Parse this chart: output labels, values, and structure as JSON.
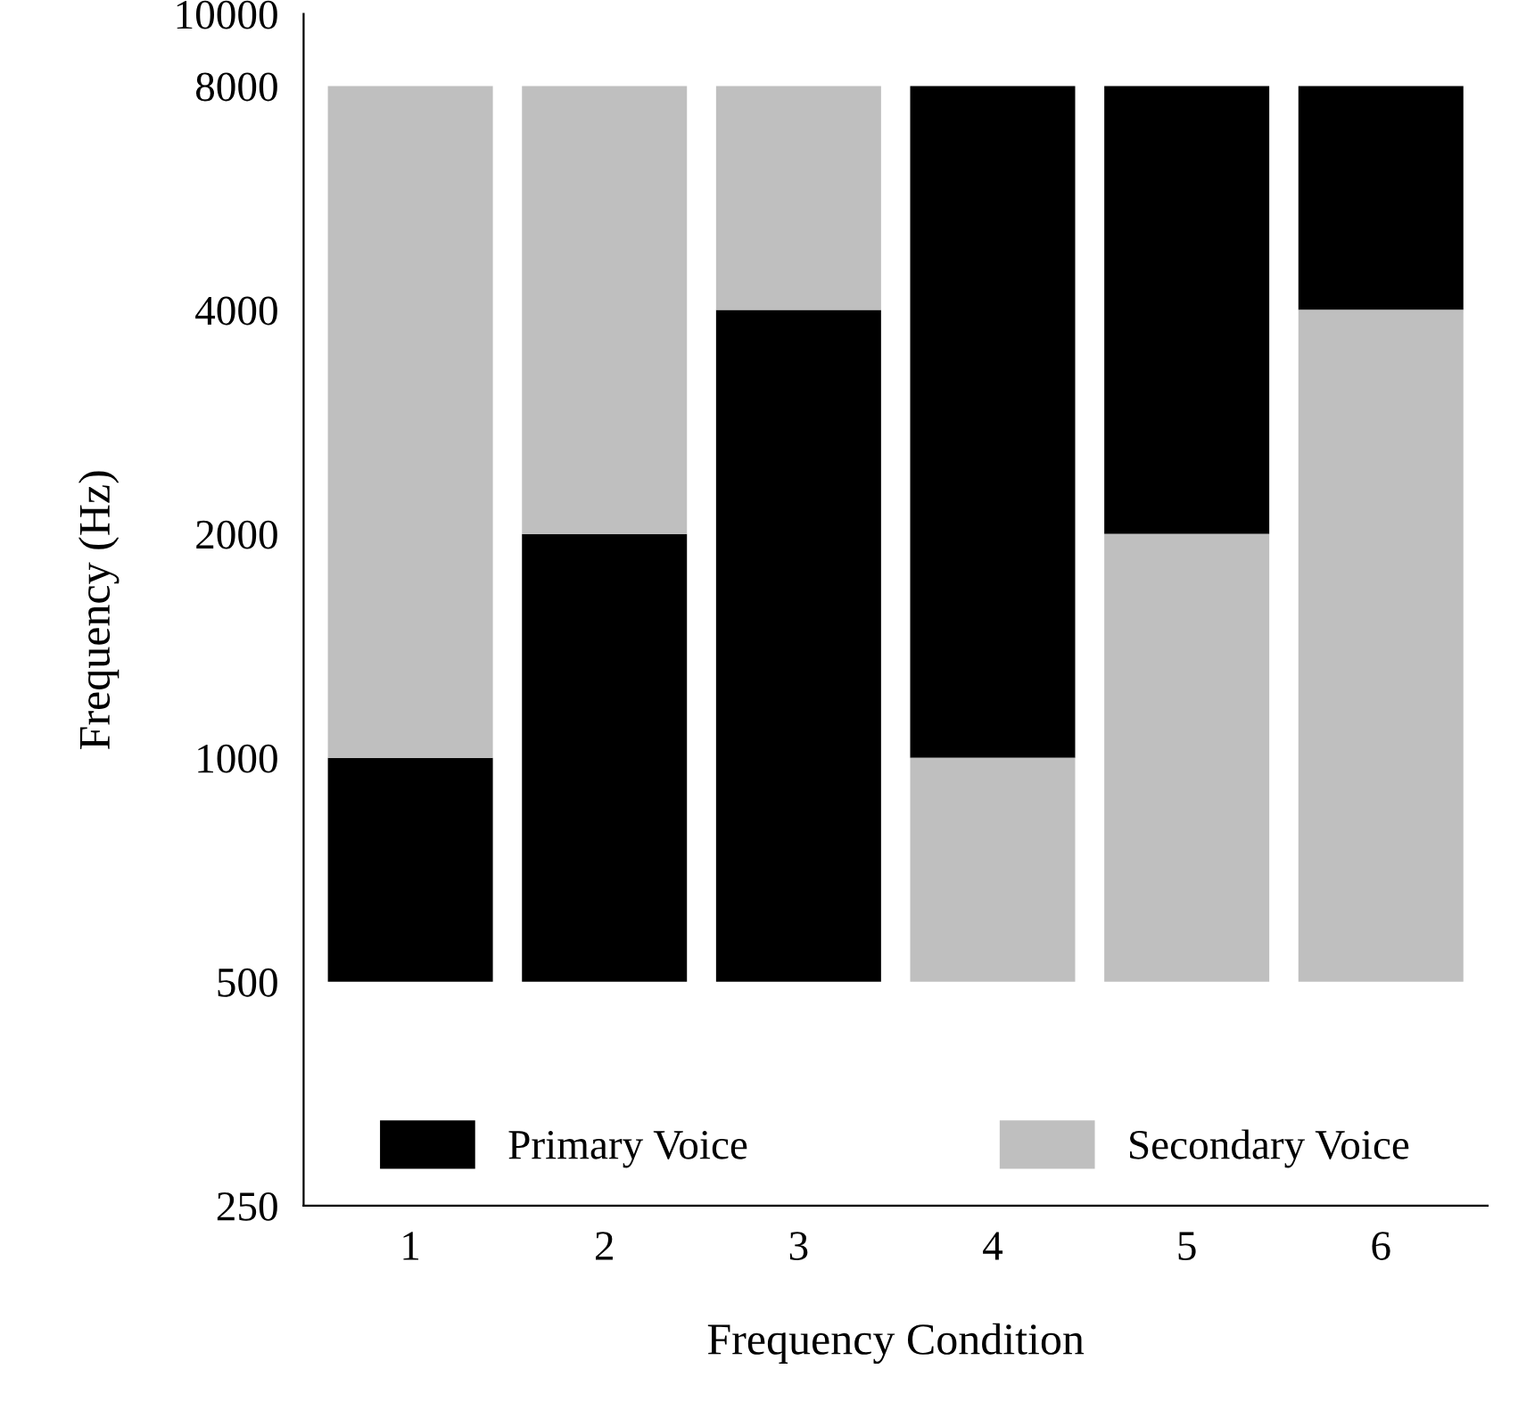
{
  "chart_data": {
    "type": "bar",
    "xlabel": "Frequency Condition",
    "ylabel": "Frequency (Hz)",
    "categories": [
      "1",
      "2",
      "3",
      "4",
      "5",
      "6"
    ],
    "series": [
      {
        "name": "Primary Voice",
        "color": "#000000",
        "base": [
          500,
          500,
          500,
          1000,
          2000,
          4000
        ],
        "values": [
          500,
          1500,
          3500,
          7000,
          6000,
          4000
        ]
      },
      {
        "name": "Secondary Voice",
        "color": "#bfbfbf",
        "base": [
          1000,
          2000,
          4000,
          500,
          500,
          500
        ],
        "values": [
          7000,
          6000,
          4000,
          500,
          1500,
          3500
        ]
      }
    ],
    "log": true,
    "ylim": [
      250,
      10000
    ],
    "yticks": [
      250,
      500,
      1000,
      2000,
      4000,
      8000,
      10000
    ],
    "grid": false,
    "legend": "bottom"
  }
}
